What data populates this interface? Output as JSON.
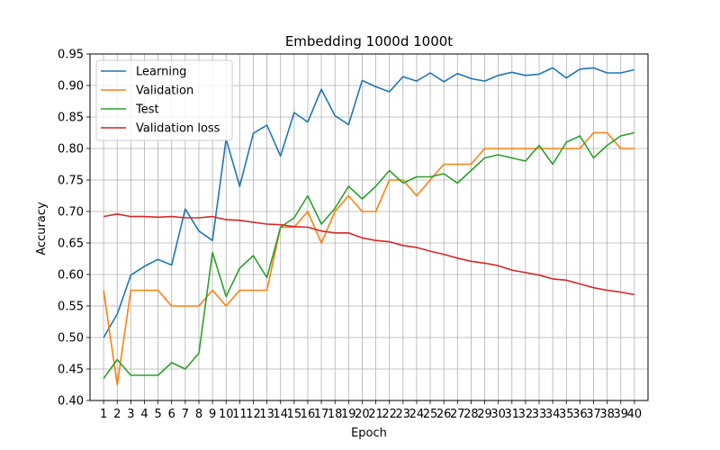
{
  "chart_data": {
    "type": "line",
    "title": "Embedding 1000d 1000t",
    "xlabel": "Epoch",
    "ylabel": "Accuracy",
    "x": [
      1,
      2,
      3,
      4,
      5,
      6,
      7,
      8,
      9,
      10,
      11,
      12,
      13,
      14,
      15,
      16,
      17,
      18,
      19,
      20,
      21,
      22,
      23,
      24,
      25,
      26,
      27,
      28,
      29,
      30,
      31,
      32,
      33,
      34,
      35,
      36,
      37,
      38,
      39,
      40
    ],
    "xlim": [
      0,
      41
    ],
    "ylim": [
      0.4,
      0.95
    ],
    "yticks": [
      "0.40",
      "0.45",
      "0.50",
      "0.55",
      "0.60",
      "0.65",
      "0.70",
      "0.75",
      "0.80",
      "0.85",
      "0.90",
      "0.95"
    ],
    "grid": true,
    "legend_position": "upper-left",
    "series": [
      {
        "name": "Learning",
        "color": "#1f77b4",
        "values": [
          0.5,
          0.537,
          0.599,
          0.613,
          0.624,
          0.615,
          0.704,
          0.669,
          0.654,
          0.815,
          0.74,
          0.824,
          0.837,
          0.788,
          0.857,
          0.842,
          0.894,
          0.852,
          0.838,
          0.908,
          0.898,
          0.89,
          0.914,
          0.907,
          0.92,
          0.906,
          0.919,
          0.911,
          0.907,
          0.916,
          0.921,
          0.916,
          0.918,
          0.928,
          0.912,
          0.926,
          0.928,
          0.92,
          0.92,
          0.925
        ]
      },
      {
        "name": "Validation",
        "color": "#ff7f0e",
        "values": [
          0.575,
          0.425,
          0.575,
          0.575,
          0.575,
          0.55,
          0.55,
          0.55,
          0.575,
          0.55,
          0.575,
          0.575,
          0.575,
          0.675,
          0.675,
          0.7,
          0.65,
          0.7,
          0.725,
          0.7,
          0.7,
          0.75,
          0.75,
          0.725,
          0.75,
          0.775,
          0.775,
          0.775,
          0.8,
          0.8,
          0.8,
          0.8,
          0.8,
          0.8,
          0.8,
          0.8,
          0.825,
          0.825,
          0.8,
          0.8
        ]
      },
      {
        "name": "Test",
        "color": "#2ca02c",
        "values": [
          0.435,
          0.465,
          0.44,
          0.44,
          0.44,
          0.46,
          0.45,
          0.475,
          0.635,
          0.565,
          0.61,
          0.63,
          0.595,
          0.675,
          0.69,
          0.725,
          0.68,
          0.705,
          0.74,
          0.72,
          0.74,
          0.765,
          0.745,
          0.755,
          0.755,
          0.76,
          0.745,
          0.765,
          0.785,
          0.79,
          0.785,
          0.78,
          0.805,
          0.775,
          0.81,
          0.82,
          0.785,
          0.805,
          0.82,
          0.825
        ]
      },
      {
        "name": "Validation loss",
        "color": "#d62728",
        "values": [
          0.692,
          0.696,
          0.692,
          0.692,
          0.691,
          0.692,
          0.69,
          0.69,
          0.692,
          0.687,
          0.686,
          0.683,
          0.68,
          0.679,
          0.676,
          0.675,
          0.669,
          0.666,
          0.666,
          0.658,
          0.654,
          0.652,
          0.646,
          0.643,
          0.637,
          0.632,
          0.626,
          0.621,
          0.618,
          0.614,
          0.607,
          0.603,
          0.599,
          0.593,
          0.591,
          0.585,
          0.579,
          0.575,
          0.572,
          0.568
        ]
      }
    ]
  }
}
